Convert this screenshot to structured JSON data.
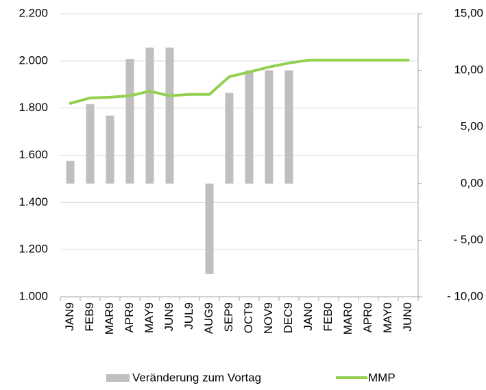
{
  "chart_data": {
    "type": "bar_line",
    "categories": [
      "JAN9",
      "FEB9",
      "MAR9",
      "APR9",
      "MAY9",
      "JUN9",
      "JUL9",
      "AUG9",
      "SEP9",
      "OCT9",
      "NOV9",
      "DEC9",
      "JAN0",
      "FEB0",
      "MAR0",
      "APR0",
      "MAY0",
      "JUN0"
    ],
    "series": [
      {
        "name": "Veränderung zum Vortag",
        "type": "bar",
        "axis": "y2",
        "color": "#bfbfbf",
        "values": [
          2,
          7,
          6,
          11,
          12,
          12,
          0,
          -8,
          8,
          10,
          10,
          10,
          null,
          null,
          null,
          null,
          null,
          null
        ]
      },
      {
        "name": "MMP",
        "type": "line",
        "axis": "y",
        "color": "#92d050",
        "values": [
          1820,
          1843,
          1846,
          1852,
          1872,
          1852,
          1858,
          1858,
          1933,
          1953,
          1974,
          1991,
          2003,
          2003,
          2003,
          2003,
          2003,
          2003
        ]
      }
    ],
    "ylim": [
      1000,
      2200
    ],
    "yticks": [
      {
        "value": 1000,
        "label": "1.000"
      },
      {
        "value": 1200,
        "label": "1.200"
      },
      {
        "value": 1400,
        "label": "1.400"
      },
      {
        "value": 1600,
        "label": "1.600"
      },
      {
        "value": 1800,
        "label": "1.800"
      },
      {
        "value": 2000,
        "label": "2.000"
      },
      {
        "value": 2200,
        "label": "2.200"
      }
    ],
    "y2lim": [
      -10,
      15
    ],
    "y2ticks": [
      {
        "value": -10,
        "label": "- 10,00"
      },
      {
        "value": -5,
        "label": "- 5,00"
      },
      {
        "value": 0,
        "label": "0,00"
      },
      {
        "value": 5,
        "label": "5,00"
      },
      {
        "value": 10,
        "label": "10,00"
      },
      {
        "value": 15,
        "label": "15,00"
      }
    ],
    "y2tick_color": "#00a000",
    "y2tick_negative_color": "#e00000",
    "grid": true,
    "legend": "bottom"
  }
}
